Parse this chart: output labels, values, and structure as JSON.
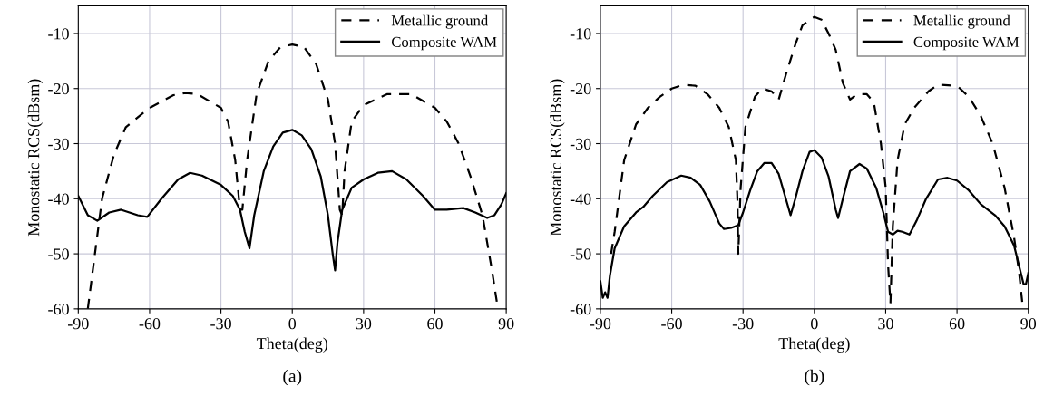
{
  "chart_data": [
    {
      "type": "line",
      "xlabel": "Theta(deg)",
      "ylabel": "Monostatic RCS(dBsm)",
      "annotations": [
        "(a)"
      ],
      "xlim": [
        -90,
        90
      ],
      "ylim": [
        -60,
        -5
      ],
      "xticks": [
        -90,
        -60,
        -30,
        0,
        30,
        60,
        90
      ],
      "yticks": [
        -60,
        -50,
        -40,
        -30,
        -20,
        -10
      ],
      "grid": true,
      "legend": "top right",
      "series": [
        {
          "name": "Metallic ground",
          "color": "#000000",
          "line_style": "dashed",
          "x": [
            -86,
            -80,
            -75,
            -70,
            -60,
            -50,
            -45,
            -40,
            -30,
            -27,
            -24,
            -22,
            -21,
            -19,
            -15,
            -10,
            -5,
            0,
            5,
            10,
            15,
            18,
            20,
            21,
            22,
            25,
            30,
            40,
            50,
            60,
            65,
            70,
            75,
            80,
            84,
            86.5
          ],
          "values": [
            -60,
            -40,
            -32,
            -27,
            -23.5,
            -21.2,
            -20.8,
            -21,
            -23.5,
            -26,
            -33,
            -42,
            -42,
            -33,
            -21,
            -15,
            -12.5,
            -12,
            -12.5,
            -15.5,
            -22,
            -30,
            -42,
            -43,
            -35,
            -26,
            -23,
            -21,
            -21,
            -23.5,
            -26,
            -30,
            -36,
            -43,
            -53,
            -60
          ]
        },
        {
          "name": "Composite WAM",
          "color": "#000000",
          "line_style": "solid",
          "x": [
            -90,
            -86,
            -82,
            -77,
            -72,
            -65,
            -61,
            -55,
            -48,
            -43,
            -38,
            -30,
            -25,
            -22,
            -20,
            -18,
            -16,
            -12,
            -8,
            -4,
            0,
            4,
            8,
            12,
            15,
            17,
            18,
            19,
            21,
            25,
            30,
            36,
            42,
            48,
            55,
            60,
            65,
            72,
            77,
            82,
            85,
            88,
            90
          ],
          "values": [
            -39.5,
            -43,
            -44,
            -42.5,
            -42,
            -43,
            -43.3,
            -40,
            -36.5,
            -35.3,
            -35.8,
            -37.5,
            -39.5,
            -42,
            -46,
            -49,
            -43,
            -35,
            -30.5,
            -28,
            -27.5,
            -28.5,
            -31,
            -36,
            -43,
            -50,
            -53,
            -48,
            -42,
            -38,
            -36.5,
            -35.3,
            -35,
            -36.5,
            -39.5,
            -42,
            -42,
            -41.7,
            -42.5,
            -43.5,
            -43,
            -41,
            -39
          ]
        }
      ]
    },
    {
      "type": "line",
      "xlabel": "Theta(deg)",
      "ylabel": "Monostatic RCS(dBsm)",
      "annotations": [
        "(b)"
      ],
      "xlim": [
        -90,
        90
      ],
      "ylim": [
        -60,
        -5
      ],
      "xticks": [
        -90,
        -60,
        -30,
        0,
        30,
        60,
        90
      ],
      "yticks": [
        -60,
        -50,
        -40,
        -30,
        -20,
        -10
      ],
      "grid": true,
      "legend": "top right",
      "series": [
        {
          "name": "Metallic ground",
          "color": "#000000",
          "line_style": "dashed",
          "x": [
            -85.5,
            -84,
            -80,
            -75,
            -70,
            -65,
            -60,
            -55,
            -50,
            -45,
            -40,
            -36,
            -33,
            -32.3,
            -32,
            -31,
            -29,
            -25,
            -22,
            -18,
            -15,
            -12,
            -8,
            -5,
            0,
            3,
            6,
            9,
            12,
            15,
            18,
            22,
            25,
            28,
            30,
            31,
            32,
            33,
            35,
            38,
            42,
            48,
            52,
            60,
            65,
            70,
            75,
            80,
            84,
            86,
            87.5
          ],
          "values": [
            -50,
            -46,
            -33,
            -26.5,
            -23.5,
            -21.5,
            -20,
            -19.3,
            -19.5,
            -21,
            -23.5,
            -27,
            -33,
            -41,
            -50,
            -38,
            -27,
            -21.5,
            -20,
            -20.5,
            -22,
            -17.5,
            -12,
            -8.5,
            -7,
            -7.5,
            -10,
            -13,
            -19,
            -22,
            -21,
            -21,
            -22.5,
            -30,
            -38,
            -52,
            -59,
            -45,
            -33,
            -26.5,
            -23.5,
            -20.5,
            -19.3,
            -19.5,
            -21.5,
            -25,
            -30,
            -38,
            -47,
            -53,
            -59
          ]
        },
        {
          "name": "Composite WAM",
          "color": "#000000",
          "line_style": "solid",
          "x": [
            -90,
            -89,
            -88,
            -87,
            -86,
            -84,
            -80,
            -75,
            -72,
            -68,
            -62,
            -56,
            -52,
            -48,
            -44,
            -40,
            -38,
            -35,
            -32,
            -30,
            -27,
            -24,
            -21,
            -18,
            -15,
            -12,
            -10,
            -8,
            -5,
            -2,
            0,
            3,
            6,
            9,
            10,
            12,
            15,
            19,
            22,
            26,
            29,
            31,
            33,
            35,
            37,
            40,
            43,
            47,
            52,
            56,
            60,
            65,
            70,
            76,
            80,
            84,
            86,
            88,
            89,
            90
          ],
          "values": [
            -55,
            -58,
            -57,
            -58,
            -54,
            -49,
            -45,
            -42.5,
            -41.5,
            -39.5,
            -37,
            -35.8,
            -36.2,
            -37.5,
            -40.5,
            -44.5,
            -45.5,
            -45.3,
            -44.8,
            -42.5,
            -38.5,
            -35,
            -33.5,
            -33.5,
            -35.5,
            -40,
            -43,
            -40,
            -35,
            -31.5,
            -31.2,
            -32.5,
            -36,
            -42,
            -43.5,
            -40,
            -35,
            -33.7,
            -34.5,
            -38,
            -42.5,
            -46,
            -46.5,
            -45.8,
            -46,
            -46.5,
            -44,
            -40,
            -36.5,
            -36.2,
            -36.7,
            -38.5,
            -41,
            -43,
            -45,
            -48.5,
            -52,
            -55.5,
            -55.5,
            -53.5
          ]
        }
      ]
    }
  ]
}
